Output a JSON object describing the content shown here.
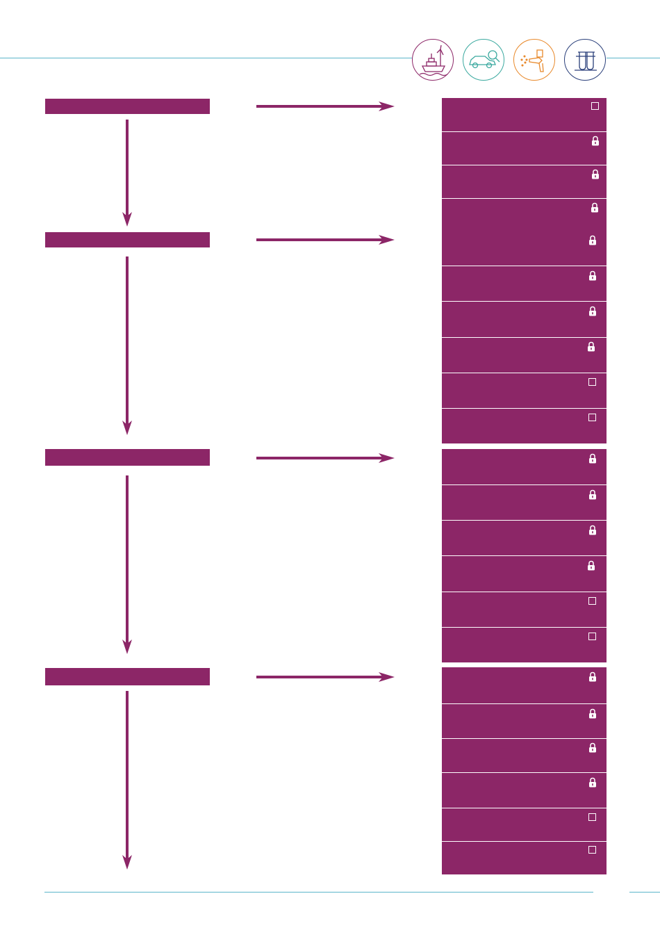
{
  "header": {
    "icons": [
      {
        "name": "maritime-wind-icon",
        "color": "#8c2667"
      },
      {
        "name": "car-inspection-icon",
        "color": "#3aa99f"
      },
      {
        "name": "spray-gun-icon",
        "color": "#e8892b"
      },
      {
        "name": "test-tubes-icon",
        "color": "#2a3f7a"
      }
    ]
  },
  "colors": {
    "accent": "#8c2667",
    "rule": "#5bb5c9"
  },
  "stages": [
    {
      "label": "",
      "items": [
        {
          "label": "",
          "state": "checkbox"
        },
        {
          "label": "",
          "state": "locked"
        },
        {
          "label": "",
          "state": "locked"
        },
        {
          "label": "",
          "state": "locked"
        }
      ]
    },
    {
      "label": "",
      "items": [
        {
          "label": "",
          "state": "locked"
        },
        {
          "label": "",
          "state": "locked"
        },
        {
          "label": "",
          "state": "locked"
        },
        {
          "label": "",
          "state": "locked"
        },
        {
          "label": "",
          "state": "checkbox"
        },
        {
          "label": "",
          "state": "checkbox"
        }
      ]
    },
    {
      "label": "",
      "items": [
        {
          "label": "",
          "state": "locked"
        },
        {
          "label": "",
          "state": "locked"
        },
        {
          "label": "",
          "state": "locked"
        },
        {
          "label": "",
          "state": "locked"
        },
        {
          "label": "",
          "state": "checkbox"
        },
        {
          "label": "",
          "state": "checkbox"
        }
      ]
    },
    {
      "label": "",
      "items": [
        {
          "label": "",
          "state": "locked"
        },
        {
          "label": "",
          "state": "locked"
        },
        {
          "label": "",
          "state": "locked"
        },
        {
          "label": "",
          "state": "locked"
        },
        {
          "label": "",
          "state": "checkbox"
        },
        {
          "label": "",
          "state": "checkbox"
        }
      ]
    }
  ]
}
